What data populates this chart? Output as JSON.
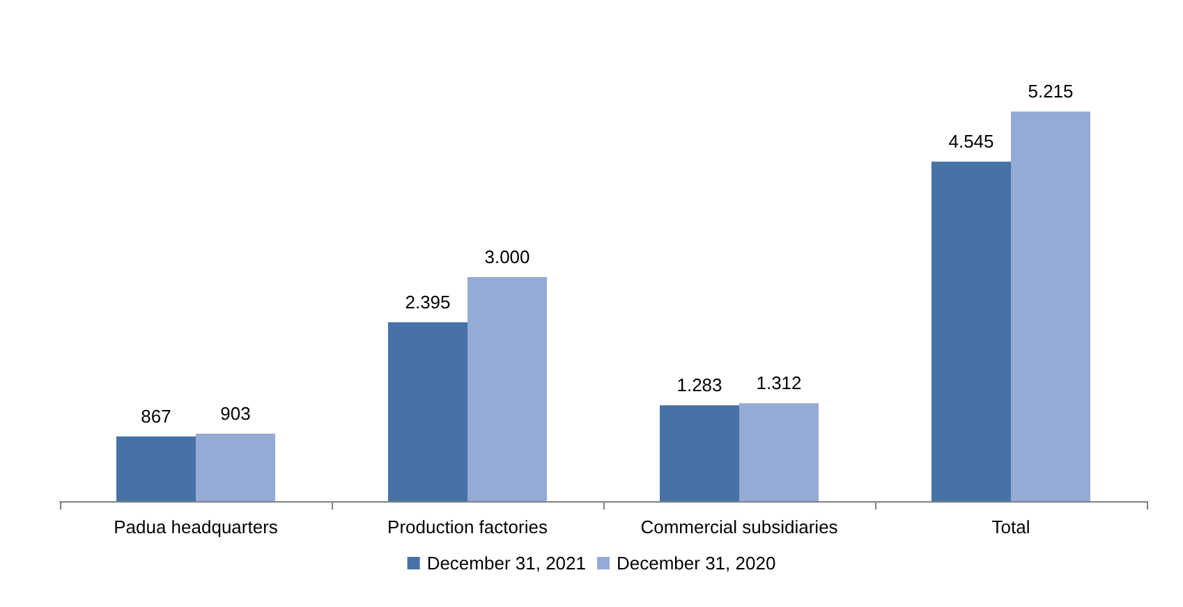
{
  "chart_data": {
    "type": "bar",
    "categories": [
      "Padua headquarters",
      "Production factories",
      "Commercial subsidiaries",
      "Total"
    ],
    "series": [
      {
        "name": "December 31, 2021",
        "color": "#4672a8",
        "values": [
          867,
          2395,
          1283,
          4545
        ],
        "value_labels": [
          "867",
          "2.395",
          "1.283",
          "4.545"
        ]
      },
      {
        "name": "December 31, 2020",
        "color": "#95aad4",
        "values": [
          903,
          3000,
          1312,
          5215
        ],
        "value_labels": [
          "903",
          "3.000",
          "1.312",
          "5.215"
        ]
      }
    ],
    "legend": "bottom",
    "grid": false
  }
}
